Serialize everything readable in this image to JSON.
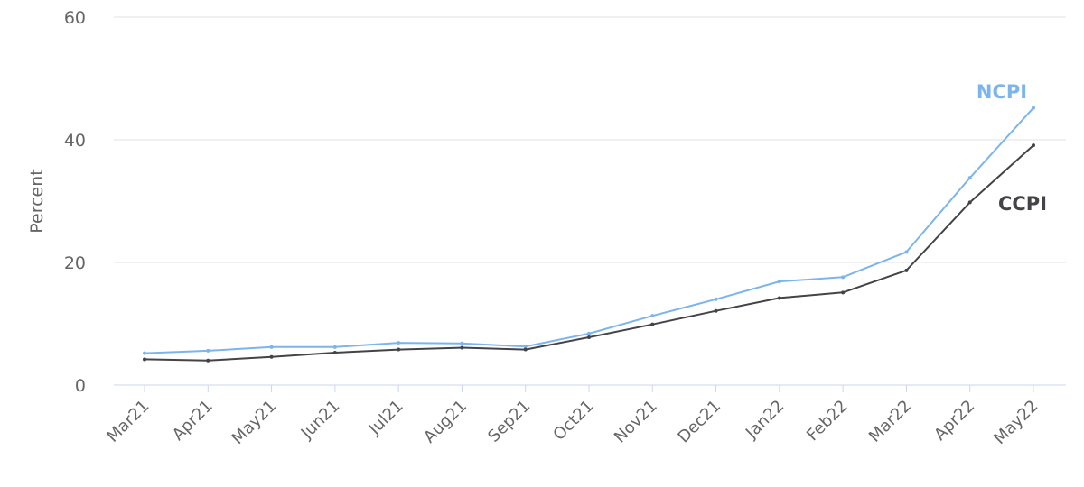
{
  "chart_data": {
    "type": "line",
    "x": [
      "Mar21",
      "Apr21",
      "May21",
      "Jun21",
      "Jul21",
      "Aug21",
      "Sep21",
      "Oct21",
      "Nov21",
      "Dec21",
      "Jan22",
      "Feb22",
      "Mar22",
      "Apr22",
      "May22"
    ],
    "ylabel": "Percent",
    "ylim": [
      0,
      60
    ],
    "yticks": [
      0,
      20,
      40,
      60
    ],
    "grid": true,
    "series": [
      {
        "name": "NCPI",
        "color": "#7cb5ec",
        "values": [
          5.2,
          5.6,
          6.2,
          6.2,
          6.9,
          6.8,
          6.3,
          8.4,
          11.3,
          14.0,
          16.9,
          17.6,
          21.7,
          33.8,
          45.2
        ]
      },
      {
        "name": "CCPI",
        "color": "#434348",
        "values": [
          4.2,
          4.0,
          4.6,
          5.3,
          5.8,
          6.1,
          5.8,
          7.8,
          9.9,
          12.1,
          14.2,
          15.1,
          18.7,
          29.8,
          39.1
        ]
      }
    ]
  }
}
